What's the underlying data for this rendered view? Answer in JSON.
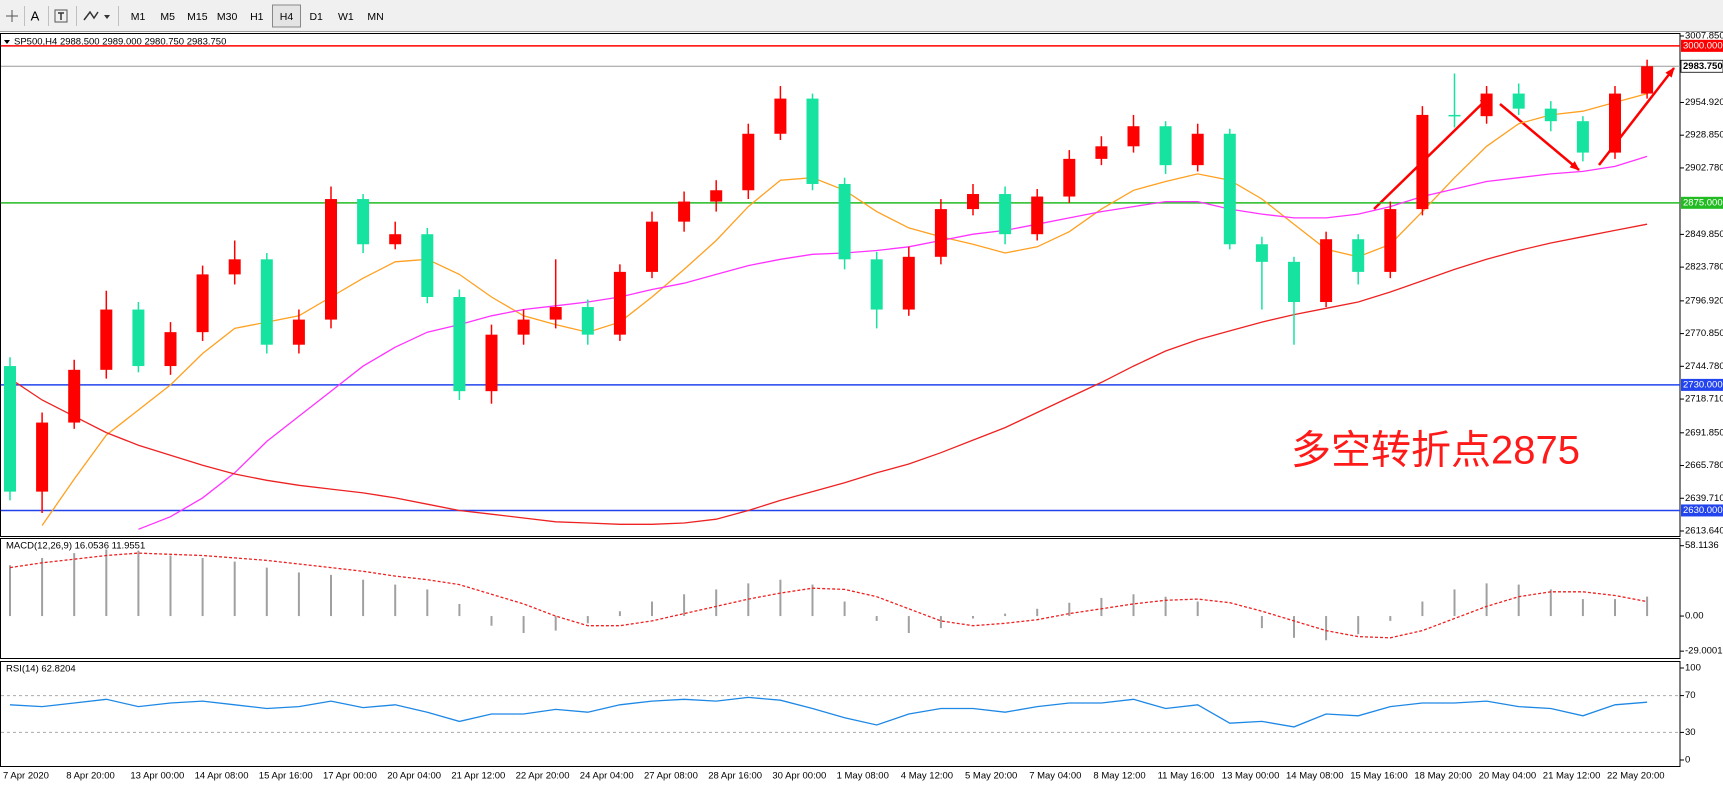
{
  "toolbar": {
    "font_button": "A",
    "timeframes": [
      "M1",
      "M5",
      "M15",
      "M30",
      "H1",
      "H4",
      "D1",
      "W1",
      "MN"
    ],
    "selected": 5
  },
  "chart_data": [
    {
      "type": "candlestick",
      "title": "SP500,H4  2988.500 2989.000 2980.750 2983.750",
      "annotation": "多空转折点2875",
      "categories": [
        "7 Apr 2020",
        null,
        "8 Apr 20:00",
        null,
        "13 Apr 00:00",
        null,
        "14 Apr 08:00",
        null,
        "15 Apr 16:00",
        null,
        "17 Apr 00:00",
        null,
        "20 Apr 04:00",
        null,
        "21 Apr 12:00",
        null,
        "22 Apr 20:00",
        null,
        "24 Apr 04:00",
        null,
        "27 Apr 08:00",
        null,
        "28 Apr 16:00",
        null,
        "30 Apr 00:00",
        null,
        "1 May 08:00",
        null,
        "4 May 12:00",
        null,
        "5 May 20:00",
        null,
        "7 May 04:00",
        null,
        "8 May 12:00",
        null,
        "11 May 16:00",
        null,
        "13 May 00:00",
        null,
        "14 May 08:00",
        null,
        "15 May 16:00",
        null,
        "18 May 20:00",
        null,
        "20 May 04:00",
        null,
        "21 May 12:00",
        null,
        "22 May 20:00",
        null
      ],
      "open": [
        2745,
        2645,
        2700,
        2742,
        2790,
        2745,
        2772,
        2818,
        2830,
        2762,
        2782,
        2878,
        2842,
        2850,
        2800,
        2725,
        2770,
        2782,
        2792,
        2770,
        2820,
        2860,
        2876,
        2885,
        2930,
        2958,
        2890,
        2830,
        2790,
        2832,
        2870,
        2882,
        2850,
        2880,
        2910,
        2920,
        2936,
        2905,
        2930,
        2842,
        2828,
        2796,
        2846,
        2820,
        2870,
        2945,
        2944,
        2962,
        2950,
        2940,
        2915,
        2962
      ],
      "high": [
        2752,
        2708,
        2750,
        2805,
        2796,
        2780,
        2825,
        2845,
        2835,
        2790,
        2888,
        2882,
        2860,
        2855,
        2806,
        2778,
        2790,
        2830,
        2798,
        2826,
        2868,
        2884,
        2893,
        2938,
        2968,
        2962,
        2895,
        2836,
        2840,
        2878,
        2890,
        2888,
        2886,
        2917,
        2928,
        2945,
        2940,
        2938,
        2934,
        2848,
        2832,
        2852,
        2850,
        2876,
        2952,
        2978,
        2968,
        2970,
        2956,
        2944,
        2968,
        2989
      ],
      "low": [
        2638,
        2628,
        2695,
        2735,
        2740,
        2738,
        2765,
        2810,
        2755,
        2755,
        2775,
        2835,
        2838,
        2795,
        2718,
        2715,
        2762,
        2775,
        2762,
        2765,
        2815,
        2852,
        2868,
        2878,
        2925,
        2885,
        2822,
        2775,
        2785,
        2826,
        2865,
        2842,
        2845,
        2875,
        2905,
        2915,
        2898,
        2900,
        2838,
        2790,
        2762,
        2792,
        2810,
        2815,
        2865,
        2935,
        2938,
        2945,
        2932,
        2908,
        2910,
        2958
      ],
      "close": [
        2645,
        2700,
        2742,
        2790,
        2745,
        2772,
        2818,
        2830,
        2762,
        2782,
        2878,
        2842,
        2850,
        2800,
        2725,
        2770,
        2782,
        2792,
        2770,
        2820,
        2860,
        2876,
        2885,
        2930,
        2958,
        2890,
        2830,
        2790,
        2832,
        2870,
        2882,
        2850,
        2880,
        2910,
        2920,
        2936,
        2905,
        2930,
        2842,
        2828,
        2796,
        2846,
        2820,
        2870,
        2945,
        2944,
        2962,
        2950,
        2940,
        2915,
        2962,
        2983.75
      ],
      "up_color": "#ff0000",
      "down_color": "#17e3a0",
      "series": [
        {
          "color": "#ffa020",
          "values": [
            null,
            2618,
            2655,
            2690,
            2710,
            2730,
            2755,
            2775,
            2780,
            2785,
            2800,
            2815,
            2828,
            2830,
            2818,
            2800,
            2785,
            2778,
            2772,
            2780,
            2800,
            2822,
            2845,
            2872,
            2893,
            2895,
            2885,
            2868,
            2855,
            2848,
            2842,
            2835,
            2840,
            2852,
            2870,
            2885,
            2892,
            2898,
            2893,
            2878,
            2858,
            2838,
            2832,
            2842,
            2868,
            2895,
            2920,
            2938,
            2945,
            2948,
            2955,
            2962
          ]
        },
        {
          "color": "#ff33ff",
          "values": [
            null,
            null,
            null,
            null,
            2615,
            2625,
            2640,
            2660,
            2685,
            2705,
            2725,
            2745,
            2760,
            2772,
            2778,
            2785,
            2790,
            2793,
            2796,
            2800,
            2806,
            2811,
            2818,
            2825,
            2830,
            2834,
            2835,
            2837,
            2840,
            2845,
            2850,
            2853,
            2858,
            2863,
            2868,
            2872,
            2876,
            2876,
            2870,
            2866,
            2863,
            2863,
            2866,
            2872,
            2880,
            2886,
            2892,
            2895,
            2898,
            2900,
            2904,
            2912
          ]
        },
        {
          "color": "#ee2222",
          "values": [
            2735,
            2718,
            2705,
            2692,
            2682,
            2674,
            2666,
            2659,
            2654,
            2650,
            2647,
            2644,
            2640,
            2635,
            2630,
            2627,
            2624,
            2621,
            2620,
            2619,
            2619,
            2620,
            2623,
            2630,
            2638,
            2645,
            2652,
            2660,
            2667,
            2676,
            2686,
            2696,
            2708,
            2720,
            2732,
            2745,
            2757,
            2766,
            2773,
            2780,
            2786,
            2791,
            2796,
            2804,
            2813,
            2822,
            2830,
            2837,
            2843,
            2848,
            2853,
            2858
          ]
        }
      ],
      "levels": [
        {
          "value": 3000,
          "label": "3000.000",
          "color": "#ff0000"
        },
        {
          "value": 2875,
          "label": "2875.000",
          "color": "#22bb22"
        },
        {
          "value": 2730,
          "label": "2730.000",
          "color": "#2244ee"
        },
        {
          "value": 2630,
          "label": "2630.000",
          "color": "#2244ee"
        }
      ],
      "current_price": {
        "value": 2983.75,
        "label": "2983.750"
      },
      "ylim": [
        2613.64,
        3007.85
      ],
      "yticks": [
        {
          "value": 3007.85,
          "label": "3007.850"
        },
        {
          "value": 2954.92,
          "label": "2954.920"
        },
        {
          "value": 2928.85,
          "label": "2928.850"
        },
        {
          "value": 2902.78,
          "label": "2902.780"
        },
        {
          "value": 2849.85,
          "label": "2849.850"
        },
        {
          "value": 2823.78,
          "label": "2823.780"
        },
        {
          "value": 2796.92,
          "label": "2796.920"
        },
        {
          "value": 2770.85,
          "label": "2770.850"
        },
        {
          "value": 2744.78,
          "label": "2744.780"
        },
        {
          "value": 2718.71,
          "label": "2718.710"
        },
        {
          "value": 2691.85,
          "label": "2691.850"
        },
        {
          "value": 2665.78,
          "label": "2665.780"
        },
        {
          "value": 2639.71,
          "label": "2639.710"
        },
        {
          "value": 2613.64,
          "label": "2613.640"
        }
      ]
    },
    {
      "type": "macd",
      "title": "MACD(12,26,9) 16.0536 11.9551",
      "histogram": {
        "color": "#a0a0a0",
        "values": [
          42,
          48,
          52,
          55,
          54,
          50,
          48,
          45,
          40,
          36,
          34,
          30,
          26,
          22,
          10,
          -8,
          -14,
          -12,
          -6,
          4,
          12,
          18,
          22,
          27,
          30,
          26,
          12,
          -4,
          -14,
          -10,
          -2,
          2,
          6,
          11,
          15,
          18,
          16,
          12,
          0,
          -10,
          -18,
          -20,
          -15,
          -4,
          12,
          22,
          27,
          26,
          22,
          14,
          14,
          16.0536
        ]
      },
      "signal": {
        "color": "#ee2222",
        "values": [
          40,
          44,
          47,
          50,
          52,
          51,
          50,
          48,
          46,
          43,
          40,
          37,
          33,
          30,
          26,
          18,
          10,
          0,
          -8,
          -8,
          -4,
          2,
          8,
          14,
          19,
          23,
          22,
          16,
          6,
          -4,
          -8,
          -6,
          -3,
          2,
          6,
          10,
          13,
          14,
          11,
          4,
          -4,
          -12,
          -17,
          -18,
          -12,
          -2,
          8,
          16,
          20,
          20,
          17,
          11.9551
        ]
      },
      "ylim": [
        -33,
        62
      ],
      "yticks": [
        58.1136,
        {
          "value": 0,
          "label": "0.00"
        },
        -29.0001
      ]
    },
    {
      "type": "line",
      "title": "RSI(14) 62.8204",
      "series": [
        {
          "color": "#1e88e5",
          "values": [
            60,
            58,
            62,
            66,
            58,
            62,
            64,
            60,
            56,
            58,
            64,
            57,
            60,
            52,
            42,
            50,
            50,
            55,
            52,
            60,
            64,
            66,
            64,
            68,
            65,
            56,
            46,
            38,
            50,
            56,
            56,
            52,
            58,
            62,
            62,
            66,
            56,
            60,
            40,
            42,
            36,
            50,
            48,
            58,
            62,
            62,
            64,
            58,
            56,
            48,
            60,
            62.8204
          ]
        }
      ],
      "ylim": [
        0,
        100
      ],
      "yticks": [
        100,
        70,
        30,
        0
      ]
    }
  ]
}
